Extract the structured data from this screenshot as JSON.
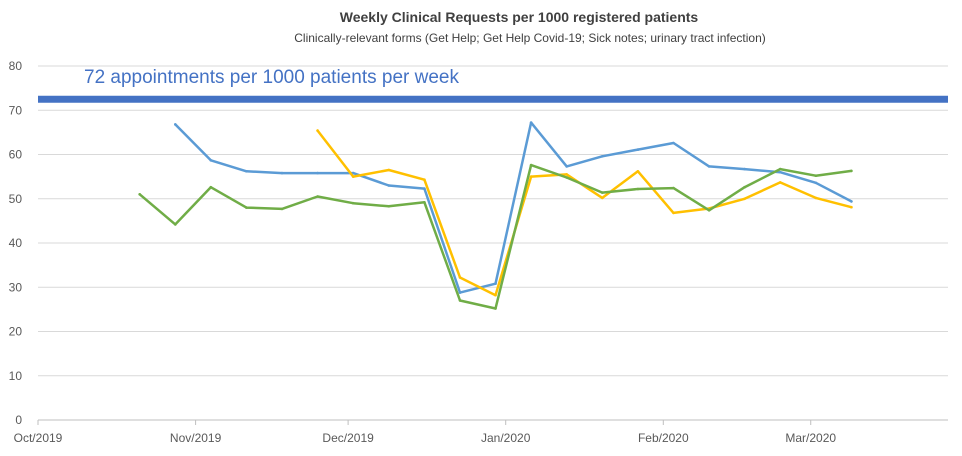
{
  "chart_data": {
    "type": "line",
    "title": "Weekly Clinical Requests per 1000 registered patients",
    "subtitle": "Clinically-relevant forms (Get Help; Get Help Covid-19; Sick notes; urinary tract infection)",
    "xlabel": "",
    "ylabel": "",
    "x_range": [
      "2019-10-01",
      "2020-03-28"
    ],
    "ylim": [
      0,
      80
    ],
    "y_ticks": [
      0,
      10,
      20,
      30,
      40,
      50,
      60,
      70,
      80
    ],
    "x_ticks": [
      {
        "date": "2019-10-01",
        "label": "Oct/2019"
      },
      {
        "date": "2019-11-01",
        "label": "Nov/2019"
      },
      {
        "date": "2019-12-01",
        "label": "Dec/2019"
      },
      {
        "date": "2020-01-01",
        "label": "Jan/2020"
      },
      {
        "date": "2020-02-01",
        "label": "Feb/2020"
      },
      {
        "date": "2020-03-01",
        "label": "Mar/2020"
      }
    ],
    "grid": "horizontal",
    "reference_line": {
      "value": 72.5,
      "label": "72 appointments per 1000 patients per week",
      "color": "#4472c4"
    },
    "series": [
      {
        "color": "#5b9bd5",
        "points": [
          [
            "2019-10-28",
            66.8
          ],
          [
            "2019-11-04",
            58.7
          ],
          [
            "2019-11-11",
            56.2
          ],
          [
            "2019-11-18",
            55.8
          ],
          [
            "2019-11-25",
            55.8
          ],
          [
            "2019-12-02",
            55.8
          ],
          [
            "2019-12-09",
            53.0
          ],
          [
            "2019-12-16",
            52.3
          ],
          [
            "2019-12-23",
            28.8
          ],
          [
            "2019-12-30",
            30.8
          ],
          [
            "2020-01-06",
            67.2
          ],
          [
            "2020-01-13",
            57.3
          ],
          [
            "2020-01-20",
            59.6
          ],
          [
            "2020-01-27",
            61.1
          ],
          [
            "2020-02-03",
            62.6
          ],
          [
            "2020-02-10",
            57.3
          ],
          [
            "2020-02-17",
            56.7
          ],
          [
            "2020-02-24",
            56.0
          ],
          [
            "2020-03-02",
            53.6
          ],
          [
            "2020-03-09",
            49.4
          ]
        ]
      },
      {
        "color": "#ffc000",
        "points": [
          [
            "2019-11-25",
            65.4
          ],
          [
            "2019-12-02",
            55.0
          ],
          [
            "2019-12-09",
            56.5
          ],
          [
            "2019-12-16",
            54.3
          ],
          [
            "2019-12-23",
            32.2
          ],
          [
            "2019-12-30",
            28.2
          ],
          [
            "2020-01-06",
            55.0
          ],
          [
            "2020-01-13",
            55.5
          ],
          [
            "2020-01-20",
            50.2
          ],
          [
            "2020-01-27",
            56.2
          ],
          [
            "2020-02-03",
            46.8
          ],
          [
            "2020-02-10",
            47.8
          ],
          [
            "2020-02-17",
            50.0
          ],
          [
            "2020-02-24",
            53.7
          ],
          [
            "2020-03-02",
            50.2
          ],
          [
            "2020-03-09",
            48.1
          ]
        ]
      },
      {
        "color": "#70ad47",
        "points": [
          [
            "2019-10-21",
            51.0
          ],
          [
            "2019-10-28",
            44.2
          ],
          [
            "2019-11-04",
            52.6
          ],
          [
            "2019-11-11",
            48.0
          ],
          [
            "2019-11-18",
            47.7
          ],
          [
            "2019-11-25",
            50.5
          ],
          [
            "2019-12-02",
            49.0
          ],
          [
            "2019-12-09",
            48.3
          ],
          [
            "2019-12-16",
            49.2
          ],
          [
            "2019-12-23",
            27.0
          ],
          [
            "2019-12-30",
            25.2
          ],
          [
            "2020-01-06",
            57.6
          ],
          [
            "2020-01-13",
            54.8
          ],
          [
            "2020-01-20",
            51.4
          ],
          [
            "2020-01-27",
            52.2
          ],
          [
            "2020-02-03",
            52.4
          ],
          [
            "2020-02-10",
            47.4
          ],
          [
            "2020-02-17",
            52.6
          ],
          [
            "2020-02-24",
            56.7
          ],
          [
            "2020-03-02",
            55.2
          ],
          [
            "2020-03-09",
            56.3
          ]
        ]
      }
    ]
  }
}
